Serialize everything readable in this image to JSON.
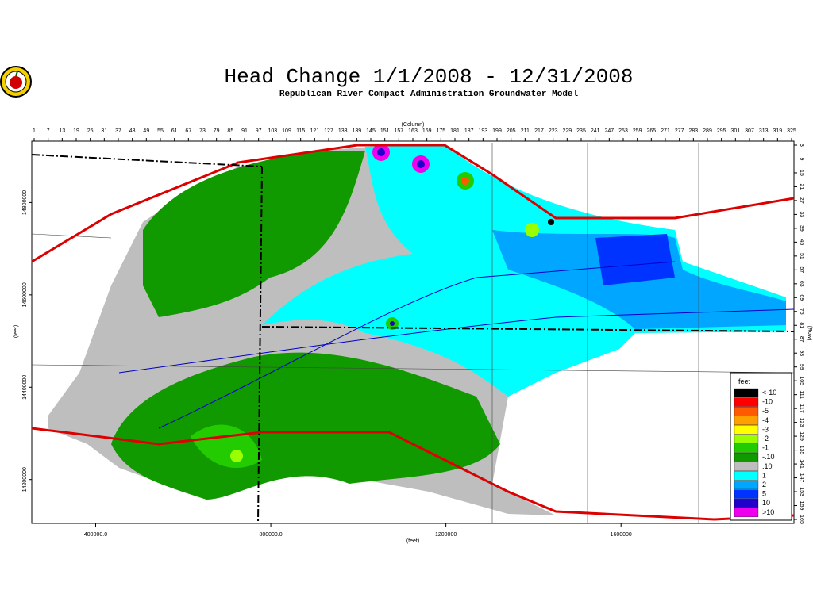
{
  "title": "Head Change 1/1/2008 - 12/31/2008",
  "subtitle": "Republican River Compact Administration Groundwater Model",
  "column_axis_label": "(Column)",
  "row_axis_label": "(Row)",
  "x_axis_label": "(feet)",
  "y_axis_label": "(feet)",
  "column_ticks": [
    1,
    7,
    13,
    19,
    25,
    31,
    37,
    43,
    49,
    55,
    61,
    67,
    73,
    79,
    85,
    91,
    97,
    103,
    109,
    115,
    121,
    127,
    133,
    139,
    145,
    151,
    157,
    163,
    169,
    175,
    181,
    187,
    193,
    199,
    205,
    211,
    217,
    223,
    229,
    235,
    241,
    247,
    253,
    259,
    265,
    271,
    277,
    283,
    289,
    295,
    301,
    307,
    313,
    319,
    325
  ],
  "row_ticks": [
    3,
    9,
    15,
    21,
    27,
    33,
    39,
    45,
    51,
    57,
    63,
    69,
    75,
    81,
    87,
    93,
    99,
    105,
    111,
    117,
    123,
    129,
    135,
    141,
    147,
    153,
    159,
    165
  ],
  "xlim": [
    254000,
    1995000
  ],
  "xticks": [
    {
      "value": 400000,
      "label": "400000.0"
    },
    {
      "value": 800000,
      "label": "800000.0"
    },
    1200000,
    1600000
  ],
  "ylim": [
    14105000,
    14933000
  ],
  "yticks": [
    14800000,
    14600000,
    14400000,
    14200000
  ],
  "legend": {
    "title": "feet",
    "entries": [
      {
        "label": "<-10",
        "color": "#000000"
      },
      {
        "label": "-10",
        "color": "#ff0000"
      },
      {
        "label": "-5",
        "color": "#ff5a00"
      },
      {
        "label": "-4",
        "color": "#ffa000"
      },
      {
        "label": "-3",
        "color": "#ffff00"
      },
      {
        "label": "-2",
        "color": "#9aff00"
      },
      {
        "label": "-1",
        "color": "#22cc00"
      },
      {
        "label": "-.10",
        "color": "#119900"
      },
      {
        "label": ".10",
        "color": "#bebebe"
      },
      {
        "label": "1",
        "color": "#00ffff"
      },
      {
        "label": "2",
        "color": "#00a6ff"
      },
      {
        "label": "5",
        "color": "#0033ff"
      },
      {
        "label": "10",
        "color": "#2200cc"
      },
      {
        "label": ">10",
        "color": "#ee00ee"
      }
    ]
  }
}
